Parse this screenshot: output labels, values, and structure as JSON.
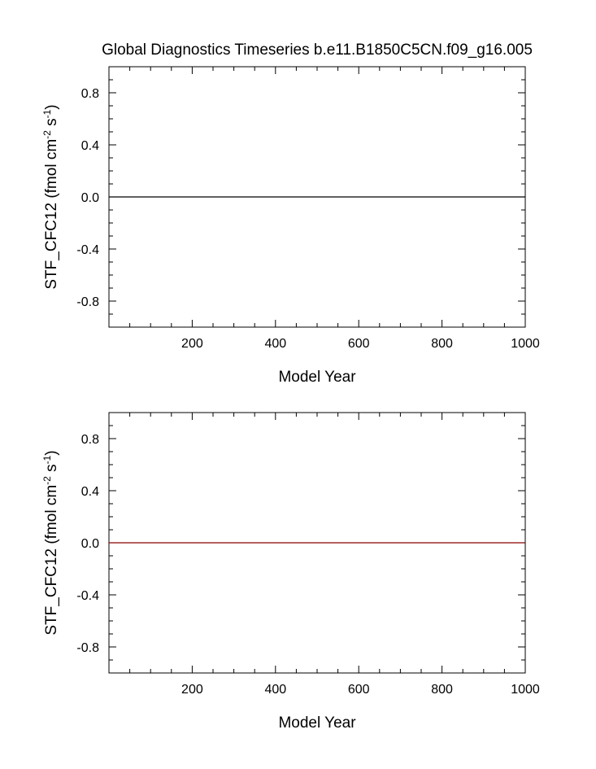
{
  "title": "Global Diagnostics Timeseries b.e11.B1850C5CN.f09_g16.005",
  "chart_data": [
    {
      "type": "line",
      "xlabel": "Model Year",
      "ylabel": {
        "main": "STF_CFC12 (fmol cm",
        "exp1": "-2",
        "mid": " s",
        "exp2": "-1",
        "close": ")"
      },
      "xlim": [
        0,
        1000
      ],
      "ylim": [
        -1,
        1
      ],
      "xticks": [
        200,
        400,
        600,
        800,
        1000
      ],
      "xtick_labels": [
        "200",
        "400",
        "600",
        "800",
        "1000"
      ],
      "yticks": [
        0.8,
        0.4,
        0.0,
        -0.4,
        -0.8
      ],
      "ytick_labels": [
        "0.8",
        "0.4",
        "0.0",
        "-0.4",
        "-0.8"
      ],
      "grid": false,
      "series": [
        {
          "x": [
            0,
            1000
          ],
          "y": [
            0,
            0
          ],
          "color": "#000000"
        }
      ]
    },
    {
      "type": "line",
      "xlabel": "Model Year",
      "ylabel": {
        "main": "STF_CFC12 (fmol cm",
        "exp1": "-2",
        "mid": " s",
        "exp2": "-1",
        "close": ")"
      },
      "xlim": [
        0,
        1000
      ],
      "ylim": [
        -1,
        1
      ],
      "xticks": [
        200,
        400,
        600,
        800,
        1000
      ],
      "xtick_labels": [
        "200",
        "400",
        "600",
        "800",
        "1000"
      ],
      "yticks": [
        0.8,
        0.4,
        0.0,
        -0.4,
        -0.8
      ],
      "ytick_labels": [
        "0.8",
        "0.4",
        "0.0",
        "-0.4",
        "-0.8"
      ],
      "grid": false,
      "series": [
        {
          "x": [
            0,
            1000
          ],
          "y": [
            0,
            0
          ],
          "color": "#8b0000"
        }
      ]
    }
  ]
}
